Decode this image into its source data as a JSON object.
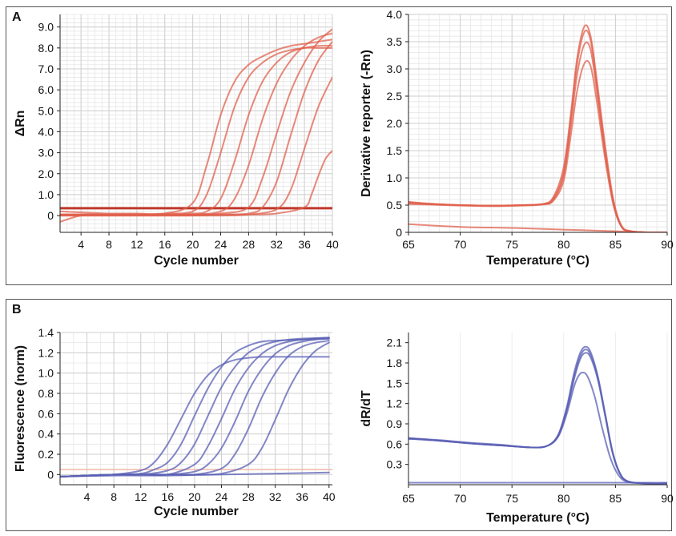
{
  "panels": [
    {
      "letter": "A"
    },
    {
      "letter": "B"
    }
  ],
  "chart_data": [
    {
      "id": "A-left",
      "type": "line",
      "panel": "A",
      "xlabel": "Cycle number",
      "ylabel": "ΔRn",
      "xlim": [
        1,
        40
      ],
      "ylim": [
        -0.8,
        9.6
      ],
      "xticks": [
        4,
        8,
        12,
        16,
        20,
        24,
        28,
        32,
        36,
        40
      ],
      "yticks": [
        0,
        1.0,
        2.0,
        3.0,
        4.0,
        5.0,
        6.0,
        7.0,
        8.0,
        9.0
      ],
      "ytick_labels": [
        "0",
        "1.0",
        "2.0",
        "3.0",
        "4.0",
        "5.0",
        "6.0",
        "7.0",
        "8.0",
        "9.0"
      ],
      "threshold": 0.35,
      "grid": true,
      "color": "#e0604c",
      "series": [
        {
          "x": [
            1,
            4,
            8,
            12,
            16,
            20,
            22,
            24,
            26,
            28,
            30,
            32,
            34,
            36,
            38,
            40
          ],
          "y": [
            0.2,
            0.15,
            0.1,
            0.1,
            0.1,
            0.6,
            2.4,
            4.8,
            6.4,
            7.2,
            7.6,
            7.9,
            8.1,
            8.2,
            8.3,
            8.4
          ]
        },
        {
          "x": [
            1,
            4,
            8,
            12,
            16,
            20,
            22,
            24,
            26,
            28,
            30,
            32,
            34,
            36,
            38,
            40
          ],
          "y": [
            -0.3,
            0.0,
            0.05,
            0.05,
            0.1,
            0.2,
            1.0,
            3.0,
            5.2,
            6.6,
            7.3,
            7.7,
            7.9,
            8.0,
            8.0,
            8.0
          ]
        },
        {
          "x": [
            1,
            4,
            8,
            12,
            16,
            20,
            22,
            24,
            26,
            28,
            30,
            32,
            34,
            36,
            38,
            40
          ],
          "y": [
            0.05,
            0.05,
            0.05,
            0.05,
            0.05,
            0.1,
            0.2,
            0.8,
            2.6,
            4.8,
            6.4,
            7.3,
            7.8,
            8.0,
            8.1,
            8.1
          ]
        },
        {
          "x": [
            1,
            4,
            8,
            12,
            16,
            20,
            24,
            26,
            28,
            30,
            32,
            34,
            36,
            38,
            40
          ],
          "y": [
            0.05,
            0.05,
            0.05,
            0.05,
            0.05,
            0.05,
            0.2,
            0.8,
            2.4,
            4.6,
            6.3,
            7.4,
            8.1,
            8.5,
            8.7
          ]
        },
        {
          "x": [
            1,
            4,
            8,
            12,
            16,
            20,
            24,
            28,
            30,
            32,
            34,
            36,
            38,
            40
          ],
          "y": [
            0.05,
            0.05,
            0.05,
            0.05,
            0.05,
            0.05,
            0.1,
            0.4,
            1.8,
            3.9,
            5.9,
            7.3,
            8.3,
            8.9
          ]
        },
        {
          "x": [
            1,
            4,
            8,
            12,
            16,
            20,
            24,
            28,
            30,
            32,
            34,
            36,
            38,
            40
          ],
          "y": [
            0.0,
            0.0,
            0.0,
            0.0,
            0.0,
            0.0,
            0.05,
            0.1,
            0.4,
            1.6,
            3.8,
            5.9,
            7.4,
            8.3
          ]
        },
        {
          "x": [
            1,
            4,
            8,
            12,
            16,
            20,
            24,
            28,
            32,
            34,
            36,
            38,
            40
          ],
          "y": [
            0.0,
            0.0,
            0.0,
            0.0,
            0.0,
            0.0,
            0.0,
            0.05,
            0.3,
            1.2,
            3.2,
            5.2,
            6.6
          ]
        },
        {
          "x": [
            1,
            4,
            8,
            12,
            16,
            20,
            24,
            28,
            32,
            36,
            37,
            38,
            39,
            40
          ],
          "y": [
            0.05,
            0.05,
            0.05,
            0.05,
            0.05,
            0.05,
            0.05,
            0.05,
            0.1,
            0.4,
            1.0,
            1.9,
            2.7,
            3.1
          ]
        }
      ]
    },
    {
      "id": "A-right",
      "type": "line",
      "panel": "A",
      "xlabel": "Temperature (°C)",
      "ylabel": "Derivative reporter (-Rn)",
      "xlim": [
        65,
        90
      ],
      "ylim": [
        0,
        4.0
      ],
      "xticks": [
        65,
        70,
        75,
        80,
        85,
        90
      ],
      "yticks": [
        0,
        0.5,
        1.0,
        1.5,
        2.0,
        2.5,
        3.0,
        3.5,
        4.0
      ],
      "ytick_labels": [
        "0",
        "0.5",
        "1.0",
        "1.5",
        "2.0",
        "2.5",
        "3.0",
        "3.5",
        "4.0"
      ],
      "grid": true,
      "color": "#e0604c",
      "series": [
        {
          "x": [
            65,
            67,
            70,
            73,
            76,
            78,
            79,
            80,
            80.7,
            81.3,
            82.0,
            82.6,
            83.2,
            84.0,
            84.8,
            85.6,
            86.5,
            88,
            90
          ],
          "y": [
            0.56,
            0.53,
            0.5,
            0.49,
            0.5,
            0.52,
            0.65,
            1.2,
            2.2,
            3.2,
            3.78,
            3.6,
            2.8,
            1.6,
            0.6,
            0.12,
            0.02,
            0.0,
            0.0
          ]
        },
        {
          "x": [
            65,
            67,
            70,
            73,
            76,
            78,
            79,
            80,
            80.7,
            81.3,
            82.0,
            82.6,
            83.2,
            84.0,
            84.8,
            85.6,
            86.5,
            88,
            90
          ],
          "y": [
            0.55,
            0.52,
            0.5,
            0.49,
            0.5,
            0.52,
            0.62,
            1.1,
            2.1,
            3.1,
            3.68,
            3.52,
            2.7,
            1.5,
            0.55,
            0.1,
            0.02,
            0.0,
            0.0
          ]
        },
        {
          "x": [
            65,
            67,
            70,
            73,
            76,
            78,
            79,
            80,
            80.7,
            81.3,
            82.0,
            82.6,
            83.2,
            84.0,
            84.8,
            85.6,
            86.5,
            88,
            90
          ],
          "y": [
            0.54,
            0.52,
            0.5,
            0.49,
            0.5,
            0.52,
            0.6,
            1.05,
            2.0,
            2.9,
            3.45,
            3.35,
            2.6,
            1.45,
            0.55,
            0.1,
            0.02,
            0.0,
            0.0
          ]
        },
        {
          "x": [
            65,
            67,
            70,
            73,
            76,
            78,
            79,
            80,
            80.7,
            81.3,
            82.0,
            82.6,
            83.2,
            84.0,
            84.8,
            85.6,
            86.5,
            88,
            90
          ],
          "y": [
            0.52,
            0.51,
            0.49,
            0.48,
            0.49,
            0.51,
            0.58,
            0.95,
            1.8,
            2.6,
            3.1,
            3.05,
            2.4,
            1.35,
            0.5,
            0.1,
            0.02,
            0.0,
            0.0
          ]
        },
        {
          "x": [
            65,
            70,
            75,
            80,
            85,
            88,
            90
          ],
          "y": [
            0.15,
            0.1,
            0.08,
            0.05,
            0.02,
            0.0,
            0.0
          ]
        }
      ]
    },
    {
      "id": "B-left",
      "type": "line",
      "panel": "B",
      "xlabel": "Cycle number",
      "ylabel": "Fluorescence (norm)",
      "xlim": [
        0,
        40.5
      ],
      "ylim": [
        -0.1,
        1.4
      ],
      "xticks": [
        4,
        8,
        12,
        16,
        20,
        24,
        28,
        32,
        36,
        40
      ],
      "yticks": [
        0,
        0.2,
        0.4,
        0.6,
        0.8,
        1.0,
        1.2,
        1.4
      ],
      "ytick_labels": [
        "0",
        "0.2",
        "0.4",
        "0.6",
        "0.8",
        "1.0",
        "1.2",
        "1.4"
      ],
      "threshold": 0.05,
      "grid": true,
      "color": "#5a5fb4",
      "series": [
        {
          "x": [
            0,
            4,
            8,
            12,
            14,
            16,
            18,
            20,
            22,
            24,
            26,
            28,
            30,
            32,
            36,
            40
          ],
          "y": [
            -0.02,
            -0.01,
            0.0,
            0.04,
            0.12,
            0.3,
            0.55,
            0.8,
            0.98,
            1.08,
            1.13,
            1.15,
            1.16,
            1.16,
            1.16,
            1.16
          ]
        },
        {
          "x": [
            0,
            4,
            8,
            12,
            14,
            16,
            18,
            20,
            22,
            24,
            26,
            28,
            30,
            32,
            36,
            40
          ],
          "y": [
            -0.02,
            -0.01,
            0.0,
            0.01,
            0.05,
            0.12,
            0.3,
            0.58,
            0.85,
            1.06,
            1.2,
            1.27,
            1.31,
            1.32,
            1.33,
            1.34
          ]
        },
        {
          "x": [
            0,
            4,
            8,
            12,
            16,
            18,
            20,
            22,
            24,
            26,
            28,
            30,
            32,
            34,
            36,
            40
          ],
          "y": [
            -0.02,
            -0.01,
            0.0,
            0.0,
            0.04,
            0.12,
            0.3,
            0.58,
            0.86,
            1.06,
            1.2,
            1.27,
            1.31,
            1.33,
            1.34,
            1.35
          ]
        },
        {
          "x": [
            0,
            4,
            8,
            12,
            16,
            20,
            22,
            24,
            26,
            28,
            30,
            32,
            34,
            36,
            38,
            40
          ],
          "y": [
            -0.02,
            -0.01,
            0.0,
            0.0,
            0.0,
            0.1,
            0.28,
            0.55,
            0.84,
            1.05,
            1.19,
            1.27,
            1.31,
            1.33,
            1.34,
            1.35
          ]
        },
        {
          "x": [
            0,
            4,
            8,
            12,
            16,
            20,
            22,
            24,
            26,
            28,
            30,
            32,
            34,
            36,
            38,
            40
          ],
          "y": [
            -0.02,
            -0.01,
            0.0,
            0.0,
            0.0,
            0.03,
            0.1,
            0.26,
            0.52,
            0.82,
            1.04,
            1.19,
            1.27,
            1.31,
            1.33,
            1.34
          ]
        },
        {
          "x": [
            0,
            4,
            8,
            12,
            16,
            20,
            24,
            26,
            28,
            30,
            32,
            34,
            36,
            38,
            40
          ],
          "y": [
            -0.02,
            -0.01,
            0.0,
            0.0,
            0.0,
            0.0,
            0.06,
            0.2,
            0.45,
            0.76,
            1.0,
            1.17,
            1.26,
            1.3,
            1.32
          ]
        },
        {
          "x": [
            0,
            4,
            8,
            12,
            16,
            20,
            24,
            28,
            30,
            32,
            34,
            36,
            38,
            40
          ],
          "y": [
            -0.02,
            -0.01,
            0.0,
            0.0,
            0.0,
            0.0,
            0.01,
            0.1,
            0.26,
            0.54,
            0.84,
            1.07,
            1.22,
            1.3
          ]
        },
        {
          "x": [
            0,
            8,
            16,
            24,
            32,
            40
          ],
          "y": [
            -0.02,
            -0.01,
            -0.01,
            0.0,
            0.01,
            0.02
          ]
        }
      ]
    },
    {
      "id": "B-right",
      "type": "line",
      "panel": "B",
      "xlabel": "Temperature (°C)",
      "ylabel": "dR/dT",
      "xlim": [
        65,
        90
      ],
      "ylim": [
        0,
        2.25
      ],
      "xticks": [
        65,
        70,
        75,
        80,
        85,
        90
      ],
      "yticks": [
        0.3,
        0.6,
        0.9,
        1.2,
        1.5,
        1.8,
        2.1
      ],
      "ytick_labels": [
        "0.3",
        "0.6",
        "0.9",
        "1.2",
        "1.5",
        "1.8",
        "2.1"
      ],
      "grid": false,
      "color": "#5a5fb4",
      "series": [
        {
          "x": [
            65,
            68,
            71,
            74,
            77,
            78.5,
            79.5,
            80.3,
            81.0,
            81.6,
            82.1,
            82.6,
            83.3,
            84.0,
            84.7,
            85.4,
            86.2,
            88,
            90
          ],
          "y": [
            0.69,
            0.66,
            0.62,
            0.59,
            0.55,
            0.58,
            0.75,
            1.15,
            1.65,
            1.95,
            2.04,
            1.96,
            1.6,
            1.05,
            0.5,
            0.18,
            0.05,
            0.02,
            0.02
          ]
        },
        {
          "x": [
            65,
            68,
            71,
            74,
            77,
            78.5,
            79.5,
            80.3,
            81.0,
            81.6,
            82.1,
            82.6,
            83.3,
            84.0,
            84.7,
            85.4,
            86.2,
            88,
            90
          ],
          "y": [
            0.69,
            0.65,
            0.61,
            0.58,
            0.55,
            0.58,
            0.74,
            1.12,
            1.6,
            1.9,
            2.0,
            1.92,
            1.58,
            1.05,
            0.5,
            0.18,
            0.05,
            0.02,
            0.02
          ]
        },
        {
          "x": [
            65,
            68,
            71,
            74,
            77,
            78.5,
            79.5,
            80.3,
            81.0,
            81.6,
            82.1,
            82.6,
            83.3,
            84.0,
            84.7,
            85.4,
            86.2,
            88,
            90
          ],
          "y": [
            0.68,
            0.65,
            0.61,
            0.58,
            0.55,
            0.58,
            0.73,
            1.1,
            1.56,
            1.86,
            1.95,
            1.88,
            1.55,
            1.02,
            0.48,
            0.17,
            0.05,
            0.02,
            0.02
          ]
        },
        {
          "x": [
            65,
            68,
            71,
            74,
            77,
            78.5,
            79.5,
            80.3,
            81.0,
            81.4,
            81.8,
            82.3,
            83.0,
            83.7,
            84.5,
            85.3,
            86.2,
            88,
            90
          ],
          "y": [
            0.68,
            0.65,
            0.61,
            0.58,
            0.55,
            0.58,
            0.72,
            1.05,
            1.45,
            1.6,
            1.66,
            1.6,
            1.3,
            0.85,
            0.4,
            0.14,
            0.04,
            0.02,
            0.02
          ]
        },
        {
          "x": [
            65,
            70,
            75,
            80,
            85,
            90
          ],
          "y": [
            0.03,
            0.03,
            0.03,
            0.03,
            0.03,
            0.03
          ]
        }
      ]
    }
  ]
}
